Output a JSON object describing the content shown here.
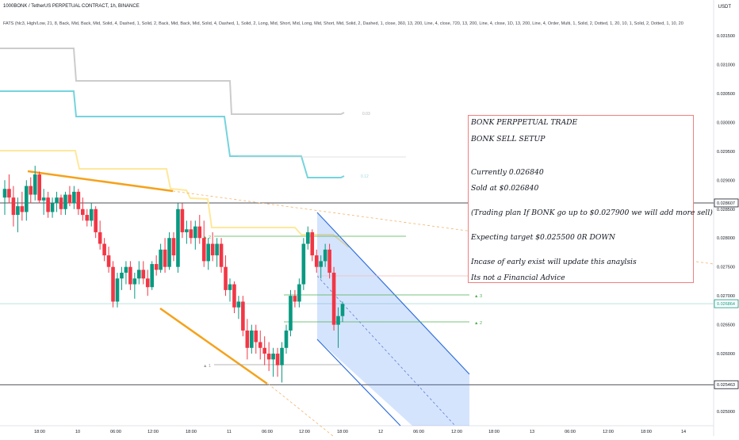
{
  "header": {
    "symbol_line": "1000BONK / TetherUS PERPETUAL CONTRACT, 1h, BINANCE",
    "indicator_line": "FATS (hlc3, High/Low, 21, 8, Back, Mid, Back, Mid, Solid, 4, Dashed, 1, Solid, 2, Back, Mid, Back, Mid, Solid, 4, Dashed, 1, Solid, 2, Long, Mid, Short, Mid, Long, Mid, Short, Mid, Solid, 2, Dashed, 1, close, 360, 13, 200, Line, 4, close, 720, 13, 200, Line, 4, close, 1D, 13, 200, Line, 4, Order, Multi, 1, Solid, 2, Dotted, 1, 20, 10, 1, Solid, 2, Dotted, 1, 10, 20",
    "currency": "USDT"
  },
  "note": {
    "lines": [
      "BONK PERPPETUAL TRADE",
      "BONK SELL SETUP",
      "Currently 0.026840",
      "Sold at $0.026840",
      "(Trading plan If BONK go up to $0.027900 we will add more sell)",
      "Expecting target $0.025500 0R DOWN",
      "Incase of early exist will update this anaylsis",
      "Its not a Financial Advice"
    ]
  },
  "chart_data": {
    "type": "candlestick",
    "symbol": "1000BONK / TetherUS PERPETUAL CONTRACT",
    "interval": "1h",
    "exchange": "BINANCE",
    "ylim": [
      0.0249,
      0.0317
    ],
    "y_ticks": [
      "0.031500",
      "0.031000",
      "0.030500",
      "0.030000",
      "0.029500",
      "0.029000",
      "0.028500",
      "0.028000",
      "0.027500",
      "0.027000",
      "0.026500",
      "0.026000",
      "0.025500",
      "0.025000"
    ],
    "x_ticks": [
      "18:00",
      "10",
      "06:00",
      "12:00",
      "18:00",
      "11",
      "06:00",
      "12:00",
      "18:00",
      "12",
      "06:00",
      "12:00",
      "18:00",
      "13",
      "06:00",
      "12:00",
      "18:00",
      "14"
    ],
    "price_labels": [
      {
        "value": "0.028607",
        "kind": "level"
      },
      {
        "value": "0.026864",
        "kind": "last"
      },
      {
        "value": "0.025463",
        "kind": "level"
      }
    ],
    "level_marks": [
      {
        "text": "▲ 2",
        "price": 0.02802
      },
      {
        "text": "▲ 3",
        "price": 0.02697
      },
      {
        "text": "▲ 2",
        "price": 0.0266
      },
      {
        "text": "▲ 1",
        "price": 0.02595
      }
    ],
    "band_labels": [
      {
        "text": "0.03",
        "price": 0.03015
      },
      {
        "text": "0.12",
        "price": 0.02908
      }
    ],
    "candles": [
      {
        "o": 0.0287,
        "h": 0.029,
        "l": 0.0284,
        "c": 0.02885
      },
      {
        "o": 0.02885,
        "h": 0.0291,
        "l": 0.0286,
        "c": 0.0287
      },
      {
        "o": 0.0287,
        "h": 0.0289,
        "l": 0.0282,
        "c": 0.0284
      },
      {
        "o": 0.0284,
        "h": 0.0287,
        "l": 0.0281,
        "c": 0.02855
      },
      {
        "o": 0.02855,
        "h": 0.0288,
        "l": 0.0283,
        "c": 0.02845
      },
      {
        "o": 0.02845,
        "h": 0.029,
        "l": 0.0283,
        "c": 0.0289
      },
      {
        "o": 0.0289,
        "h": 0.02905,
        "l": 0.0286,
        "c": 0.02875
      },
      {
        "o": 0.02875,
        "h": 0.02925,
        "l": 0.02865,
        "c": 0.0291
      },
      {
        "o": 0.0291,
        "h": 0.02915,
        "l": 0.0286,
        "c": 0.02865
      },
      {
        "o": 0.02865,
        "h": 0.02885,
        "l": 0.0284,
        "c": 0.0287
      },
      {
        "o": 0.0287,
        "h": 0.0288,
        "l": 0.02835,
        "c": 0.02845
      },
      {
        "o": 0.02845,
        "h": 0.0287,
        "l": 0.02835,
        "c": 0.0286
      },
      {
        "o": 0.0286,
        "h": 0.0288,
        "l": 0.02845,
        "c": 0.0287
      },
      {
        "o": 0.0287,
        "h": 0.02875,
        "l": 0.0284,
        "c": 0.0285
      },
      {
        "o": 0.0285,
        "h": 0.0288,
        "l": 0.0284,
        "c": 0.02875
      },
      {
        "o": 0.02875,
        "h": 0.0289,
        "l": 0.02855,
        "c": 0.0286
      },
      {
        "o": 0.0286,
        "h": 0.0289,
        "l": 0.0285,
        "c": 0.0288
      },
      {
        "o": 0.0288,
        "h": 0.02885,
        "l": 0.0284,
        "c": 0.0285
      },
      {
        "o": 0.0285,
        "h": 0.0287,
        "l": 0.0283,
        "c": 0.0284
      },
      {
        "o": 0.0284,
        "h": 0.0285,
        "l": 0.0282,
        "c": 0.0283
      },
      {
        "o": 0.0283,
        "h": 0.0286,
        "l": 0.0282,
        "c": 0.0285
      },
      {
        "o": 0.0285,
        "h": 0.02855,
        "l": 0.028,
        "c": 0.0281
      },
      {
        "o": 0.0281,
        "h": 0.0283,
        "l": 0.0278,
        "c": 0.0279
      },
      {
        "o": 0.0279,
        "h": 0.028,
        "l": 0.0276,
        "c": 0.0277
      },
      {
        "o": 0.0277,
        "h": 0.02785,
        "l": 0.0274,
        "c": 0.0275
      },
      {
        "o": 0.0275,
        "h": 0.0276,
        "l": 0.0268,
        "c": 0.0269
      },
      {
        "o": 0.0269,
        "h": 0.0274,
        "l": 0.0268,
        "c": 0.0273
      },
      {
        "o": 0.0273,
        "h": 0.0275,
        "l": 0.0271,
        "c": 0.0274
      },
      {
        "o": 0.0274,
        "h": 0.0276,
        "l": 0.0272,
        "c": 0.0275
      },
      {
        "o": 0.0275,
        "h": 0.0276,
        "l": 0.0271,
        "c": 0.0272
      },
      {
        "o": 0.0272,
        "h": 0.0274,
        "l": 0.02695,
        "c": 0.0273
      },
      {
        "o": 0.0273,
        "h": 0.0276,
        "l": 0.0272,
        "c": 0.02745
      },
      {
        "o": 0.02745,
        "h": 0.0276,
        "l": 0.0272,
        "c": 0.0273
      },
      {
        "o": 0.0273,
        "h": 0.02745,
        "l": 0.027,
        "c": 0.02715
      },
      {
        "o": 0.02715,
        "h": 0.0276,
        "l": 0.0271,
        "c": 0.02755
      },
      {
        "o": 0.02755,
        "h": 0.0277,
        "l": 0.02735,
        "c": 0.02745
      },
      {
        "o": 0.02745,
        "h": 0.0279,
        "l": 0.0274,
        "c": 0.0278
      },
      {
        "o": 0.0278,
        "h": 0.028,
        "l": 0.0274,
        "c": 0.0275
      },
      {
        "o": 0.0275,
        "h": 0.0281,
        "l": 0.02745,
        "c": 0.028
      },
      {
        "o": 0.028,
        "h": 0.0281,
        "l": 0.0276,
        "c": 0.0277
      },
      {
        "o": 0.0275,
        "h": 0.0286,
        "l": 0.0274,
        "c": 0.0285
      },
      {
        "o": 0.0285,
        "h": 0.0286,
        "l": 0.028,
        "c": 0.0281
      },
      {
        "o": 0.0281,
        "h": 0.0283,
        "l": 0.0279,
        "c": 0.02815
      },
      {
        "o": 0.02815,
        "h": 0.0283,
        "l": 0.0279,
        "c": 0.028
      },
      {
        "o": 0.028,
        "h": 0.0283,
        "l": 0.0278,
        "c": 0.0282
      },
      {
        "o": 0.0282,
        "h": 0.0284,
        "l": 0.0279,
        "c": 0.028
      },
      {
        "o": 0.028,
        "h": 0.0283,
        "l": 0.0275,
        "c": 0.0276
      },
      {
        "o": 0.0276,
        "h": 0.028,
        "l": 0.02745,
        "c": 0.0279
      },
      {
        "o": 0.0279,
        "h": 0.0281,
        "l": 0.0276,
        "c": 0.0277
      },
      {
        "o": 0.0277,
        "h": 0.028,
        "l": 0.0275,
        "c": 0.0279
      },
      {
        "o": 0.0279,
        "h": 0.028,
        "l": 0.0274,
        "c": 0.0275
      },
      {
        "o": 0.0275,
        "h": 0.0277,
        "l": 0.027,
        "c": 0.0271
      },
      {
        "o": 0.0271,
        "h": 0.0273,
        "l": 0.0269,
        "c": 0.0272
      },
      {
        "o": 0.0272,
        "h": 0.02725,
        "l": 0.0267,
        "c": 0.0268
      },
      {
        "o": 0.0268,
        "h": 0.027,
        "l": 0.0266,
        "c": 0.0269
      },
      {
        "o": 0.0269,
        "h": 0.027,
        "l": 0.0263,
        "c": 0.0264
      },
      {
        "o": 0.0264,
        "h": 0.0266,
        "l": 0.0259,
        "c": 0.0261
      },
      {
        "o": 0.0261,
        "h": 0.0265,
        "l": 0.026,
        "c": 0.0264
      },
      {
        "o": 0.0264,
        "h": 0.0265,
        "l": 0.026,
        "c": 0.0262
      },
      {
        "o": 0.0262,
        "h": 0.0264,
        "l": 0.0259,
        "c": 0.0261
      },
      {
        "o": 0.0261,
        "h": 0.0263,
        "l": 0.0258,
        "c": 0.026
      },
      {
        "o": 0.026,
        "h": 0.0262,
        "l": 0.0257,
        "c": 0.0259
      },
      {
        "o": 0.0259,
        "h": 0.0261,
        "l": 0.0256,
        "c": 0.026
      },
      {
        "o": 0.026,
        "h": 0.0261,
        "l": 0.0256,
        "c": 0.0258
      },
      {
        "o": 0.0258,
        "h": 0.0262,
        "l": 0.0255,
        "c": 0.0261
      },
      {
        "o": 0.0261,
        "h": 0.0265,
        "l": 0.026,
        "c": 0.0264
      },
      {
        "o": 0.0264,
        "h": 0.0271,
        "l": 0.0263,
        "c": 0.027
      },
      {
        "o": 0.027,
        "h": 0.0271,
        "l": 0.0268,
        "c": 0.0269
      },
      {
        "o": 0.0269,
        "h": 0.0273,
        "l": 0.0268,
        "c": 0.0272
      },
      {
        "o": 0.0272,
        "h": 0.028,
        "l": 0.0271,
        "c": 0.0279
      },
      {
        "o": 0.0279,
        "h": 0.0282,
        "l": 0.0278,
        "c": 0.0281
      },
      {
        "o": 0.0281,
        "h": 0.02815,
        "l": 0.0276,
        "c": 0.0277
      },
      {
        "o": 0.0277,
        "h": 0.0278,
        "l": 0.0274,
        "c": 0.0275
      },
      {
        "o": 0.0275,
        "h": 0.0277,
        "l": 0.0273,
        "c": 0.0276
      },
      {
        "o": 0.0276,
        "h": 0.0279,
        "l": 0.0275,
        "c": 0.0278
      },
      {
        "o": 0.0278,
        "h": 0.0279,
        "l": 0.0273,
        "c": 0.0274
      },
      {
        "o": 0.0274,
        "h": 0.0275,
        "l": 0.0264,
        "c": 0.0265
      },
      {
        "o": 0.0265,
        "h": 0.0268,
        "l": 0.0261,
        "c": 0.02665
      },
      {
        "o": 0.02665,
        "h": 0.0269,
        "l": 0.02655,
        "c": 0.02686
      }
    ]
  }
}
